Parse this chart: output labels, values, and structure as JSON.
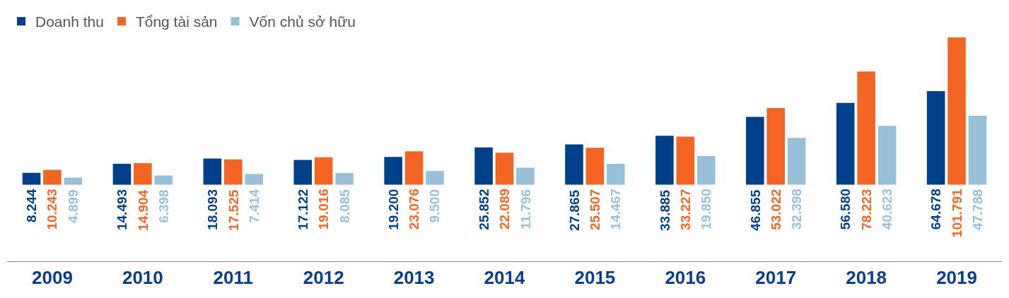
{
  "chart_data": {
    "type": "bar",
    "categories": [
      "2009",
      "2010",
      "2011",
      "2012",
      "2013",
      "2014",
      "2015",
      "2016",
      "2017",
      "2018",
      "2019"
    ],
    "legend": "top left",
    "series": [
      {
        "name": "Doanh thu",
        "color": "#003f8a",
        "values": [
          8244,
          14493,
          18093,
          17122,
          19200,
          25852,
          27865,
          33885,
          46855,
          56580,
          64678
        ],
        "value_labels": [
          "8.244",
          "14.493",
          "18.093",
          "17.122",
          "19.200",
          "25.852",
          "27.865",
          "33.885",
          "46.855",
          "56.580",
          "64.678"
        ]
      },
      {
        "name": "Tổng tài sản",
        "color": "#f26522",
        "values": [
          10243,
          14904,
          17525,
          19016,
          23076,
          22089,
          25507,
          33227,
          53022,
          78223,
          101791
        ],
        "value_labels": [
          "10.243",
          "14.904",
          "17.525",
          "19.016",
          "23.076",
          "22.089",
          "25.507",
          "33.227",
          "53.022",
          "78.223",
          "101.791"
        ]
      },
      {
        "name": "Vốn chủ sở hữu",
        "color": "#98c1d9",
        "values": [
          4899,
          6398,
          7414,
          8085,
          9500,
          11796,
          14467,
          19850,
          32398,
          40623,
          47788
        ],
        "value_labels": [
          "4.899",
          "6.398",
          "7.414",
          "8.085",
          "9.500",
          "11.796",
          "14.467",
          "19.850",
          "32.398",
          "40.623",
          "47.788"
        ]
      }
    ]
  }
}
